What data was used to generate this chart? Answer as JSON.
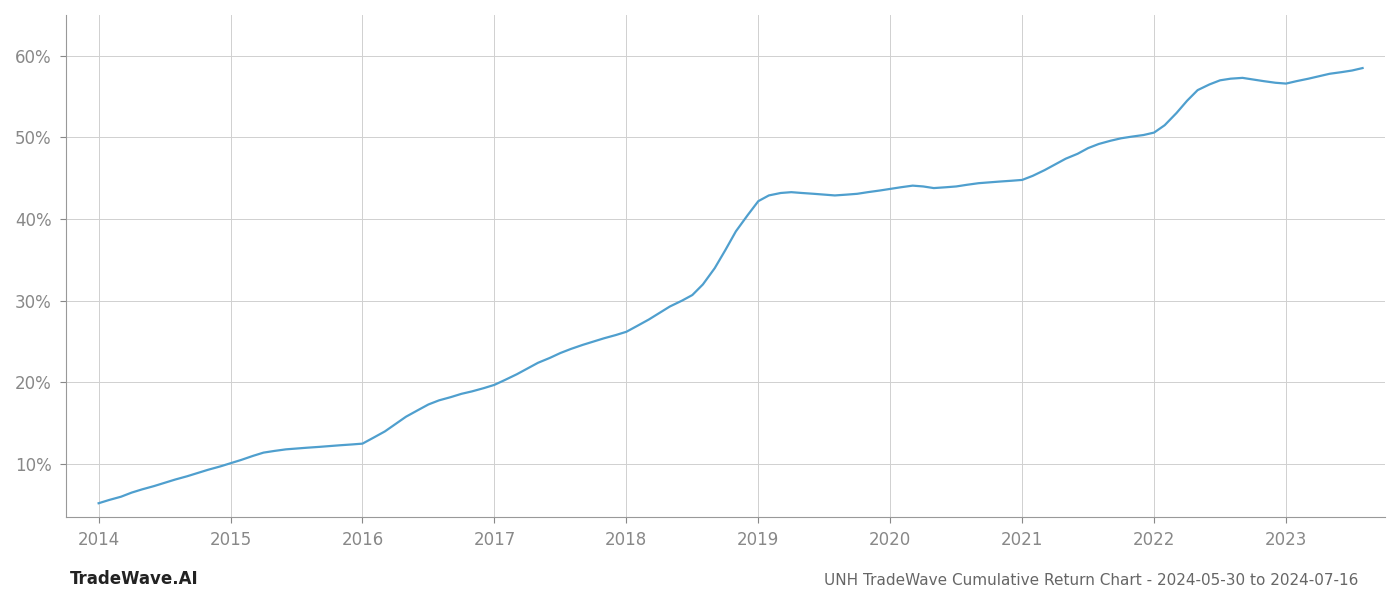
{
  "title": "UNH TradeWave Cumulative Return Chart - 2024-05-30 to 2024-07-16",
  "watermark": "TradeWave.AI",
  "line_color": "#4f9fce",
  "background_color": "#ffffff",
  "grid_color": "#d0d0d0",
  "x_values": [
    2014.0,
    2014.08,
    2014.17,
    2014.25,
    2014.33,
    2014.42,
    2014.5,
    2014.58,
    2014.67,
    2014.75,
    2014.83,
    2014.92,
    2015.0,
    2015.08,
    2015.17,
    2015.25,
    2015.33,
    2015.42,
    2015.5,
    2015.58,
    2015.67,
    2015.75,
    2015.83,
    2015.92,
    2016.0,
    2016.08,
    2016.17,
    2016.25,
    2016.33,
    2016.42,
    2016.5,
    2016.58,
    2016.67,
    2016.75,
    2016.83,
    2016.92,
    2017.0,
    2017.08,
    2017.17,
    2017.25,
    2017.33,
    2017.42,
    2017.5,
    2017.58,
    2017.67,
    2017.75,
    2017.83,
    2017.92,
    2018.0,
    2018.08,
    2018.17,
    2018.25,
    2018.33,
    2018.42,
    2018.5,
    2018.58,
    2018.67,
    2018.75,
    2018.83,
    2018.92,
    2019.0,
    2019.08,
    2019.17,
    2019.25,
    2019.33,
    2019.42,
    2019.5,
    2019.58,
    2019.67,
    2019.75,
    2019.83,
    2019.92,
    2020.0,
    2020.08,
    2020.17,
    2020.25,
    2020.33,
    2020.42,
    2020.5,
    2020.58,
    2020.67,
    2020.75,
    2020.83,
    2020.92,
    2021.0,
    2021.08,
    2021.17,
    2021.25,
    2021.33,
    2021.42,
    2021.5,
    2021.58,
    2021.67,
    2021.75,
    2021.83,
    2021.92,
    2022.0,
    2022.08,
    2022.17,
    2022.25,
    2022.33,
    2022.42,
    2022.5,
    2022.58,
    2022.67,
    2022.75,
    2022.83,
    2022.92,
    2023.0,
    2023.08,
    2023.17,
    2023.25,
    2023.33,
    2023.42,
    2023.5,
    2023.58
  ],
  "y_values": [
    5.2,
    5.6,
    6.0,
    6.5,
    6.9,
    7.3,
    7.7,
    8.1,
    8.5,
    8.9,
    9.3,
    9.7,
    10.1,
    10.5,
    11.0,
    11.4,
    11.6,
    11.8,
    11.9,
    12.0,
    12.1,
    12.2,
    12.3,
    12.4,
    12.5,
    13.2,
    14.0,
    14.9,
    15.8,
    16.6,
    17.3,
    17.8,
    18.2,
    18.6,
    18.9,
    19.3,
    19.7,
    20.3,
    21.0,
    21.7,
    22.4,
    23.0,
    23.6,
    24.1,
    24.6,
    25.0,
    25.4,
    25.8,
    26.2,
    26.9,
    27.7,
    28.5,
    29.3,
    30.0,
    30.7,
    32.0,
    34.0,
    36.2,
    38.5,
    40.5,
    42.2,
    42.9,
    43.2,
    43.3,
    43.2,
    43.1,
    43.0,
    42.9,
    43.0,
    43.1,
    43.3,
    43.5,
    43.7,
    43.9,
    44.1,
    44.0,
    43.8,
    43.9,
    44.0,
    44.2,
    44.4,
    44.5,
    44.6,
    44.7,
    44.8,
    45.3,
    46.0,
    46.7,
    47.4,
    48.0,
    48.7,
    49.2,
    49.6,
    49.9,
    50.1,
    50.3,
    50.6,
    51.5,
    53.0,
    54.5,
    55.8,
    56.5,
    57.0,
    57.2,
    57.3,
    57.1,
    56.9,
    56.7,
    56.6,
    56.9,
    57.2,
    57.5,
    57.8,
    58.0,
    58.2,
    58.5
  ],
  "xlim": [
    2013.75,
    2023.75
  ],
  "ylim": [
    3.5,
    65
  ],
  "yticks": [
    10,
    20,
    30,
    40,
    50,
    60
  ],
  "xticks": [
    2014,
    2015,
    2016,
    2017,
    2018,
    2019,
    2020,
    2021,
    2022,
    2023
  ],
  "line_width": 1.6,
  "title_fontsize": 11,
  "watermark_fontsize": 12,
  "tick_label_color": "#888888",
  "title_color": "#666666",
  "watermark_color": "#222222",
  "spine_color": "#999999"
}
